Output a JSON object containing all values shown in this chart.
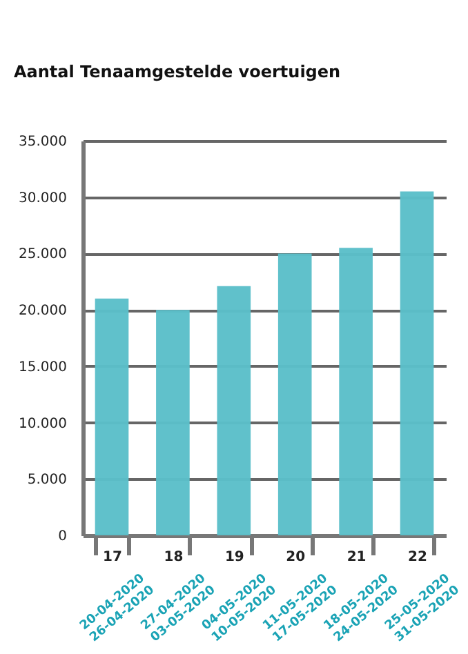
{
  "chart_data": {
    "type": "bar",
    "title": "Aantal Tenaamgestelde voertuigen",
    "categories": [
      "17",
      "18",
      "19",
      "20",
      "21",
      "22"
    ],
    "values": [
      21000,
      20000,
      22100,
      25000,
      25500,
      30500
    ],
    "color": "#5bbfc9",
    "ylim": [
      0,
      35000
    ],
    "yticks": [
      {
        "value": 0,
        "label": "0"
      },
      {
        "value": 5000,
        "label": "5.000"
      },
      {
        "value": 10000,
        "label": "10.000"
      },
      {
        "value": 15000,
        "label": "15.000"
      },
      {
        "value": 20000,
        "label": "20.000"
      },
      {
        "value": 25000,
        "label": "25.000"
      },
      {
        "value": 30000,
        "label": "30.000"
      },
      {
        "value": 35000,
        "label": "35.000"
      }
    ],
    "grid": "y",
    "annotations": [
      "20-04-2020 26-04-2020",
      "27-04-2020 03-05-2020",
      "04-05-2020 10-05-2020",
      "11-05-2020 17-05-2020",
      "18-05-2020 24-05-2020",
      "25-05-2020 31-05-2020"
    ]
  }
}
